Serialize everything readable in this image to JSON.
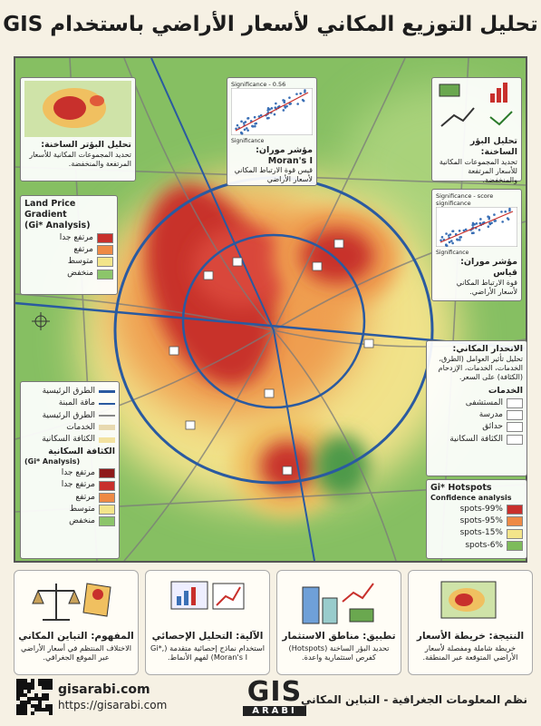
{
  "title": "تحليل التوزيع المكاني لأسعار الأراضي باستخدام GIS",
  "panels": {
    "hotspot_left": {
      "title": "تحليل البؤتر الساخنة:",
      "text": "تحديد المجموعات المكانية للأسعار المرتفعة والمنخفضة."
    },
    "moran_top": {
      "chart_label": "Significance - 0.56",
      "axis_label": "Significance",
      "title": "مؤشر موران: Moran's I",
      "text": "قيس قوة الارتباط المكاني لأسعار الأراضي"
    },
    "hotspot_right": {
      "title": "تحليل البؤر الساخنة:",
      "text": "تحديد المجموعات المكانية للأسعار المرتفعة والمنخفضة."
    },
    "moran_right": {
      "chart_label": "Significance - score significance",
      "axis_label": "Significance",
      "title": "مؤشر موران: قياس",
      "text": "قوة الارتباط المكاني لأسعار الأراضي."
    },
    "gradient_legend": {
      "title": "Land Price Gradient",
      "subtitle": "(Gi* Analysis)",
      "items": [
        "مرتفع جدا",
        "مرتفع",
        "متوسط",
        "منخفض"
      ]
    },
    "regression": {
      "title": "الانحدار المكاني:",
      "text": "تحليل تأثير العوامل (الطرق، الخدمات، الخدمات، الإزدحام (الكثافة) على السعر.",
      "services_title": "الخدمات",
      "services": [
        "المستشفى",
        "مدرسة",
        "حدائق",
        "الكثافة السكانية"
      ]
    },
    "hotspots_legend": {
      "title": "Gi* Hotspots",
      "subtitle": "Confidence analysis",
      "items": [
        "99%-spots",
        "95%-spots",
        "15%-spots",
        "6%-spots"
      ]
    },
    "map_legend": {
      "items": [
        "الطرق الرئيسية",
        "ماقة المبنة",
        "الطرق الرئيسية",
        "الخدمات",
        "الكثافة السكانية"
      ],
      "density_title": "الكثافة السكانية",
      "density_subtitle": "(Gi* Analysis)",
      "density_items": [
        "مرتفع جدا",
        "مرتفع جدا",
        "مرتفع",
        "متوسط",
        "منخفض"
      ]
    }
  },
  "cards": [
    {
      "title": "النتيجة: خريطة الأسعار",
      "text": "خريطة شاملة ومفصلة لأسعار الأراضي المتوقعة عبر المنطقة."
    },
    {
      "title": "تطبيق: مناطق الاستثمار",
      "text": "تحديد البؤر الساخنة (Hotspots) كفرص استثمارية واعدة."
    },
    {
      "title": "الآلية: التحليل الإحصائي",
      "text": "استخدام نماذج إحصائية متقدمة (Gi*, Moran's I) لفهم الأنماط."
    },
    {
      "title": "المفهوم: التباين المكاني",
      "text": "الاختلاف المنتظم في أسعار الأراضي عبر الموقع الجغرافي."
    }
  ],
  "footer": {
    "site": "gisarabi.com",
    "url": "https://gisarabi.com",
    "logo_top": "GIS",
    "logo_bottom": "ARABI",
    "caption": "نظم المعلومات الجغرافية - التباين المكاني"
  }
}
